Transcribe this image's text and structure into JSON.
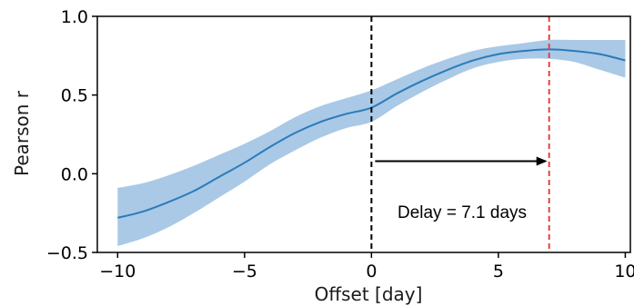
{
  "chart_data": {
    "type": "line",
    "title": "",
    "xlabel": "Offset [day]",
    "ylabel": "Pearson r",
    "xlim": [
      -10.8,
      10.2
    ],
    "ylim": [
      -0.5,
      1.0
    ],
    "grid": false,
    "x_ticks": [
      -10,
      -5,
      0,
      5,
      10
    ],
    "x_tick_labels": [
      "−10",
      "−5",
      "0",
      "5",
      "10"
    ],
    "y_ticks": [
      -0.5,
      0.0,
      0.5,
      1.0
    ],
    "y_tick_labels": [
      "−0.5",
      "0.0",
      "0.5",
      "1.0"
    ],
    "series": [
      {
        "color": "#2b7bba",
        "band_color": "#a9c9e6",
        "x": [
          -10,
          -9,
          -8,
          -7,
          -6,
          -5,
          -4,
          -3,
          -2,
          -1,
          0,
          1,
          2,
          3,
          4,
          5,
          6,
          7,
          8,
          9,
          10
        ],
        "y": [
          -0.28,
          -0.24,
          -0.18,
          -0.11,
          -0.02,
          0.07,
          0.17,
          0.26,
          0.33,
          0.38,
          0.42,
          0.51,
          0.59,
          0.66,
          0.72,
          0.76,
          0.78,
          0.79,
          0.78,
          0.76,
          0.72
        ],
        "lower": [
          -0.46,
          -0.41,
          -0.34,
          -0.25,
          -0.15,
          -0.05,
          0.06,
          0.15,
          0.23,
          0.29,
          0.33,
          0.43,
          0.52,
          0.6,
          0.67,
          0.71,
          0.73,
          0.73,
          0.71,
          0.66,
          0.61
        ],
        "upper": [
          -0.09,
          -0.06,
          -0.01,
          0.05,
          0.12,
          0.19,
          0.27,
          0.36,
          0.43,
          0.48,
          0.53,
          0.6,
          0.67,
          0.73,
          0.78,
          0.81,
          0.83,
          0.85,
          0.85,
          0.85,
          0.85
        ]
      }
    ],
    "vlines": [
      {
        "x": 0,
        "color": "#000000",
        "style": "dashed"
      },
      {
        "x": 7,
        "color": "#e8403f",
        "style": "dashed"
      }
    ],
    "arrow": {
      "from_x": 0,
      "to_x": 7,
      "y": 0.08,
      "color": "#000000"
    },
    "annotation": "Delay = 7.1 days"
  }
}
